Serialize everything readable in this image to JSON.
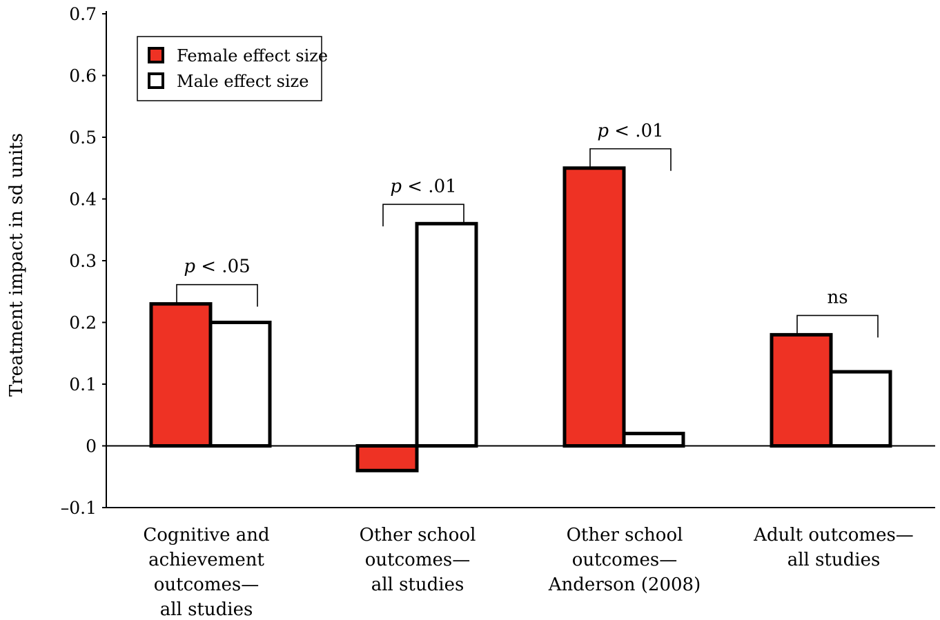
{
  "chart_data": {
    "type": "bar",
    "title": "",
    "xlabel": "",
    "ylabel": "Treatment impact in sd units",
    "ylim": [
      -0.1,
      0.7
    ],
    "yticks": [
      {
        "value": -0.1,
        "label": "–0.1"
      },
      {
        "value": 0,
        "label": "0"
      },
      {
        "value": 0.1,
        "label": "0.1"
      },
      {
        "value": 0.2,
        "label": "0.2"
      },
      {
        "value": 0.3,
        "label": "0.3"
      },
      {
        "value": 0.4,
        "label": "0.4"
      },
      {
        "value": 0.5,
        "label": "0.5"
      },
      {
        "value": 0.6,
        "label": "0.6"
      },
      {
        "value": 0.7,
        "label": "0.7"
      }
    ],
    "categories": [
      "Cognitive and achievement outcomes—all studies",
      "Other school outcomes—all studies",
      "Other school outcomes—Anderson (2008)",
      "Adult outcomes—all studies"
    ],
    "category_lines": [
      [
        "Cognitive and",
        "achievement",
        "outcomes—",
        "all studies"
      ],
      [
        "Other school",
        "outcomes—",
        "all studies"
      ],
      [
        "Other school",
        "outcomes—",
        "Anderson (2008)"
      ],
      [
        "Adult outcomes—",
        "all studies"
      ]
    ],
    "series": [
      {
        "name": "Female effect size",
        "color": "#ee3224",
        "values": [
          0.23,
          -0.04,
          0.45,
          0.18
        ]
      },
      {
        "name": "Male effect size",
        "color": "#ffffff",
        "values": [
          0.2,
          0.36,
          0.02,
          0.12
        ]
      }
    ],
    "significance": [
      {
        "prefix": "p",
        "rest": " < .05"
      },
      {
        "prefix": "p",
        "rest": " < .01"
      },
      {
        "prefix": "p",
        "rest": " < .01"
      },
      {
        "prefix": "",
        "rest": "ns"
      }
    ],
    "legend_position": "top-left",
    "grid": false
  }
}
